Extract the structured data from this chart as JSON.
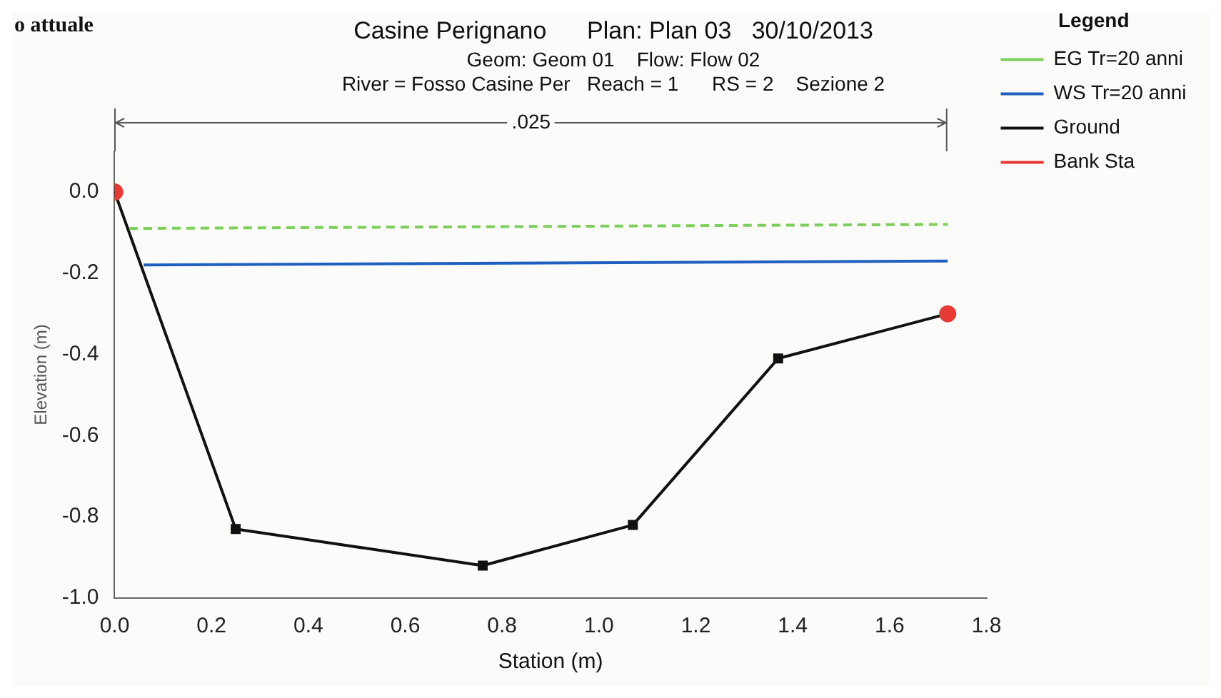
{
  "chart_data": {
    "type": "line",
    "title": "Casine Perignano      Plan: Plan 03   30/10/2013",
    "subtitle": "Geom: Geom 01    Flow: Flow 02\nRiver = Fosso Casine Per   Reach = 1      RS = 2    Sezione 2",
    "xlabel": "Station (m)",
    "ylabel": "Elevation (m)",
    "legend_title": "Legend",
    "legend": "right",
    "grid": false,
    "xlim": [
      0,
      1.8
    ],
    "xticks": [
      {
        "value": 0,
        "label": "0.0"
      },
      0.2,
      0.4,
      0.6,
      0.8,
      {
        "value": 1,
        "label": "1.0"
      },
      1.2,
      1.4,
      1.6,
      1.8
    ],
    "ylim": [
      -1,
      0.1
    ],
    "yticks": [
      {
        "value": -1,
        "label": "-1.0"
      },
      -0.8,
      -0.6,
      -0.4,
      -0.2,
      {
        "value": 0,
        "label": "0.0"
      }
    ],
    "annotations": [
      "o attuale",
      ".025"
    ],
    "series": [
      {
        "name": "EG Tr=20 anni",
        "color": "#7ccf5a",
        "x": [
          0.03,
          1.72
        ],
        "values": [
          -0.09,
          -0.08
        ],
        "marker": "none",
        "line_style": "dashed"
      },
      {
        "name": "WS Tr=20 anni",
        "color": "#1f5fc0",
        "x": [
          0.06,
          1.72
        ],
        "values": [
          -0.18,
          -0.17
        ],
        "marker": "none",
        "line_style": "solid"
      },
      {
        "name": "Ground",
        "color": "#111111",
        "x": [
          0,
          0.25,
          0.76,
          1.07,
          1.37,
          1.72
        ],
        "values": [
          0,
          -0.83,
          -0.92,
          -0.82,
          -0.41,
          -0.3
        ],
        "marker": "square",
        "line_style": "solid"
      },
      {
        "name": "Bank Sta",
        "type": "scatter",
        "color": "#e83a33",
        "x": [
          0,
          1.72
        ],
        "values": [
          0,
          -0.3
        ],
        "marker": "circle"
      }
    ]
  }
}
